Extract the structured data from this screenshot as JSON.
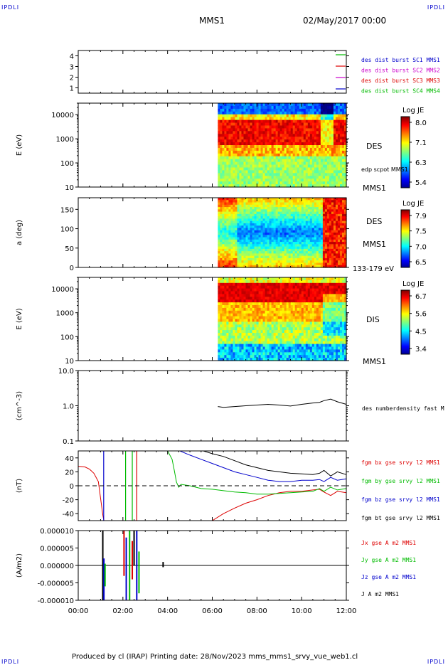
{
  "corners": {
    "tl": "IPDLI",
    "tr": "IPDLI",
    "bl": "IPDLI",
    "br": "IPDLI"
  },
  "header": {
    "title": "MMS1",
    "datetime": "02/May/2017 00:00"
  },
  "footer": {
    "text": "Produced by cl (IRAP)   Printing date: 28/Nov/2023   mms_mms1_srvy_vue_web1.cl"
  },
  "time_axis": {
    "ticks": [
      "00:00",
      "02:00",
      "04:00",
      "06:00",
      "08:00",
      "10:00",
      "12:00"
    ]
  },
  "colors": {
    "mms1": "#0000cc",
    "mms2": "#cc00cc",
    "mms3": "#dd0000",
    "mms4": "#00bb00",
    "black": "#000000"
  },
  "chart_data": [
    {
      "type": "line",
      "panel": "burst-flags",
      "ylim": [
        0.5,
        4.5
      ],
      "yticks": [
        "1",
        "2",
        "3",
        "4"
      ],
      "series": [
        {
          "name": "des dist burst SC1 MMS1",
          "color": "#0000cc"
        },
        {
          "name": "des dist burst SC2 MMS2",
          "color": "#cc00cc"
        },
        {
          "name": "des dist burst SC3 MMS3",
          "color": "#dd0000"
        },
        {
          "name": "des dist burst SC4 MMS4",
          "color": "#00bb00"
        }
      ]
    },
    {
      "type": "heatmap",
      "panel": "des-energy",
      "ylabel": "E (eV)",
      "yscale": "log",
      "ylim": [
        10,
        30000
      ],
      "yticks": [
        "10000",
        "1000",
        "100",
        "10"
      ],
      "data_start_hour": 6.25,
      "labels": [
        "DES",
        "edp scpot MMS1",
        "MMS1"
      ],
      "colorbar": {
        "title": "Log JE",
        "ticks": [
          "8.0",
          "7.1",
          "6.3",
          "5.4"
        ]
      }
    },
    {
      "type": "heatmap",
      "panel": "des-pitch",
      "ylabel": "a (deg)",
      "ylim": [
        0,
        180
      ],
      "yticks": [
        "150",
        "100",
        "50",
        "0"
      ],
      "data_start_hour": 6.25,
      "labels": [
        "DES",
        "MMS1",
        "133-179 eV"
      ],
      "colorbar": {
        "title": "Log JE",
        "ticks": [
          "7.9",
          "7.5",
          "7.0",
          "6.5"
        ]
      }
    },
    {
      "type": "heatmap",
      "panel": "dis-energy",
      "ylabel": "E (eV)",
      "yscale": "log",
      "ylim": [
        10,
        30000
      ],
      "yticks": [
        "10000",
        "1000",
        "100",
        "10"
      ],
      "data_start_hour": 6.25,
      "labels": [
        "DIS",
        "MMS1"
      ],
      "colorbar": {
        "title": "Log JE",
        "ticks": [
          "6.7",
          "5.6",
          "4.5",
          "3.4"
        ]
      }
    },
    {
      "type": "line",
      "panel": "density",
      "ylabel": "(cm^-3)",
      "yscale": "log",
      "ylim": [
        0.1,
        10
      ],
      "yticks": [
        "10.0",
        "1.0",
        "0.1"
      ],
      "series": [
        {
          "name": "des numberdensity fast M",
          "color": "#000000",
          "x": [
            6.25,
            6.5,
            7.0,
            7.5,
            8.0,
            8.5,
            9.0,
            9.5,
            10.0,
            10.5,
            10.8,
            11.0,
            11.3,
            11.6,
            12.0
          ],
          "y": [
            0.95,
            0.9,
            0.95,
            1.0,
            1.05,
            1.1,
            1.05,
            0.98,
            1.1,
            1.2,
            1.25,
            1.4,
            1.55,
            1.3,
            1.1
          ]
        }
      ]
    },
    {
      "type": "line",
      "panel": "fgm",
      "ylabel": "(nT)",
      "ylim": [
        -50,
        50
      ],
      "yticks": [
        "40",
        "20",
        "0",
        "-20",
        "-40"
      ],
      "series": [
        {
          "name": "fgm bx gse srvy l2 MMS1",
          "color": "#dd0000",
          "x": [
            0.0,
            0.3,
            0.5,
            0.7,
            0.9,
            1.1,
            1.15,
            6.0,
            6.5,
            7.0,
            7.5,
            8.0,
            8.5,
            9.0,
            9.5,
            10.0,
            10.5,
            10.8,
            11.0,
            11.3,
            11.6,
            12.0
          ],
          "y": [
            28,
            27,
            24,
            18,
            6,
            -42,
            -50,
            -50,
            -40,
            -32,
            -25,
            -20,
            -14,
            -10,
            -8,
            -8,
            -6,
            -5,
            -9,
            -14,
            -8,
            -10
          ]
        },
        {
          "name": "fgm by gse srvy l2 MMS1",
          "color": "#00bb00",
          "x": [
            4.0,
            4.2,
            4.3,
            4.4,
            4.5,
            4.6,
            5.0,
            5.5,
            6.0,
            6.5,
            7.0,
            7.5,
            8.0,
            8.5,
            9.0,
            9.5,
            10.0,
            10.5,
            10.8,
            11.0,
            11.3,
            11.6,
            12.0
          ],
          "y": [
            50,
            38,
            22,
            5,
            -2,
            2,
            0,
            -4,
            -5,
            -7,
            -9,
            -10,
            -12,
            -12,
            -11,
            -10,
            -9,
            -8,
            -4,
            -8,
            -2,
            -6,
            -4
          ]
        },
        {
          "name": "fgm bz gse srvy l2 MMS1",
          "color": "#0000cc",
          "x": [
            4.55,
            5.0,
            5.5,
            6.0,
            6.5,
            7.0,
            7.5,
            8.0,
            8.5,
            9.0,
            9.5,
            10.0,
            10.5,
            10.8,
            11.0,
            11.3,
            11.6,
            12.0
          ],
          "y": [
            50,
            44,
            38,
            32,
            26,
            20,
            16,
            12,
            8,
            6,
            6,
            8,
            8,
            9,
            6,
            12,
            8,
            10
          ]
        },
        {
          "name": "fgm bt gse srvy l2 MMS1",
          "color": "#000000",
          "x": [
            5.6,
            6.0,
            6.5,
            7.0,
            7.5,
            8.0,
            8.5,
            9.0,
            9.5,
            10.0,
            10.5,
            10.8,
            11.0,
            11.3,
            11.6,
            12.0
          ],
          "y": [
            50,
            46,
            42,
            36,
            30,
            26,
            22,
            20,
            18,
            17,
            16,
            18,
            22,
            14,
            20,
            16
          ]
        }
      ]
    },
    {
      "type": "line",
      "panel": "current",
      "ylabel": "(A/m2)",
      "ylim": [
        -1e-05,
        1e-05
      ],
      "yticks": [
        "0.000010",
        "0.000005",
        "0.000000",
        "-0.000005",
        "-0.000010"
      ],
      "series": [
        {
          "name": "Jx gse A m2 MMS1",
          "color": "#dd0000"
        },
        {
          "name": "Jy gse A m2 MMS1",
          "color": "#00bb00"
        },
        {
          "name": "Jz gse A m2 MMS1",
          "color": "#0000cc"
        },
        {
          "name": "J A m2 MMS1",
          "color": "#000000"
        }
      ]
    }
  ]
}
